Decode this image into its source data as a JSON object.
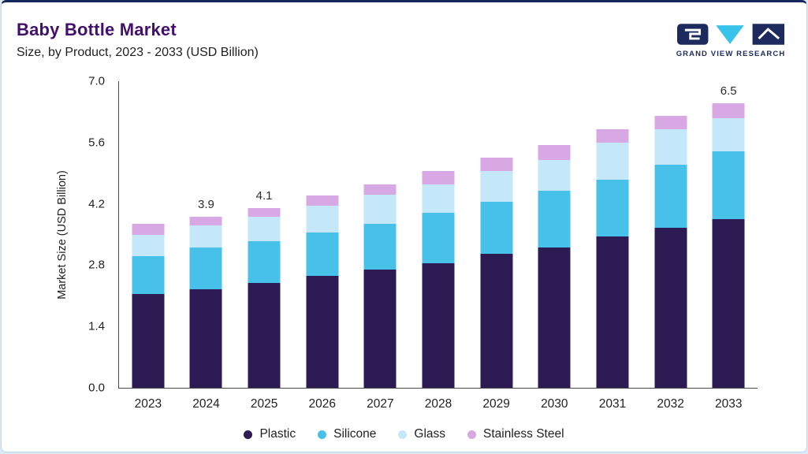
{
  "header": {
    "title": "Baby Bottle Market",
    "subtitle": "Size, by Product, 2023 - 2033 (USD Billion)",
    "logo_text": "GRAND VIEW RESEARCH"
  },
  "chart_data": {
    "type": "bar",
    "stacked": true,
    "title": "Baby Bottle Market Size, by Product, 2023 - 2033 (USD Billion)",
    "xlabel": "",
    "ylabel": "Market Size (USD Billion)",
    "ylim": [
      0.0,
      7.0
    ],
    "ytick_labels": [
      "0.0",
      "1.4",
      "2.8",
      "4.2",
      "5.6",
      "7.0"
    ],
    "categories": [
      "2023",
      "2024",
      "2025",
      "2026",
      "2027",
      "2028",
      "2029",
      "2030",
      "2031",
      "2032",
      "2033"
    ],
    "series": [
      {
        "name": "Plastic",
        "color": "#2d1b54",
        "values": [
          2.15,
          2.25,
          2.4,
          2.55,
          2.7,
          2.85,
          3.05,
          3.2,
          3.45,
          3.65,
          3.85
        ]
      },
      {
        "name": "Silicone",
        "color": "#47c1ea",
        "values": [
          0.85,
          0.95,
          0.95,
          1.0,
          1.05,
          1.15,
          1.2,
          1.3,
          1.3,
          1.45,
          1.55
        ]
      },
      {
        "name": "Glass",
        "color": "#c4e8f9",
        "values": [
          0.5,
          0.5,
          0.55,
          0.6,
          0.65,
          0.65,
          0.7,
          0.7,
          0.85,
          0.8,
          0.75
        ]
      },
      {
        "name": "Stainless Steel",
        "color": "#d8a8e4",
        "values": [
          0.25,
          0.2,
          0.2,
          0.25,
          0.25,
          0.3,
          0.3,
          0.35,
          0.3,
          0.3,
          0.35
        ]
      }
    ],
    "annotations": [
      {
        "category": "2024",
        "label": "3.9"
      },
      {
        "category": "2025",
        "label": "4.1"
      },
      {
        "category": "2033",
        "label": "6.5"
      }
    ],
    "legend_position": "bottom",
    "grid": false
  },
  "colors": {
    "title": "#43106b",
    "top_accent": "#13265c",
    "card_border": "#b9d6ea",
    "logo_navy": "#1c2a5e",
    "logo_cyan": "#38c3ea"
  }
}
